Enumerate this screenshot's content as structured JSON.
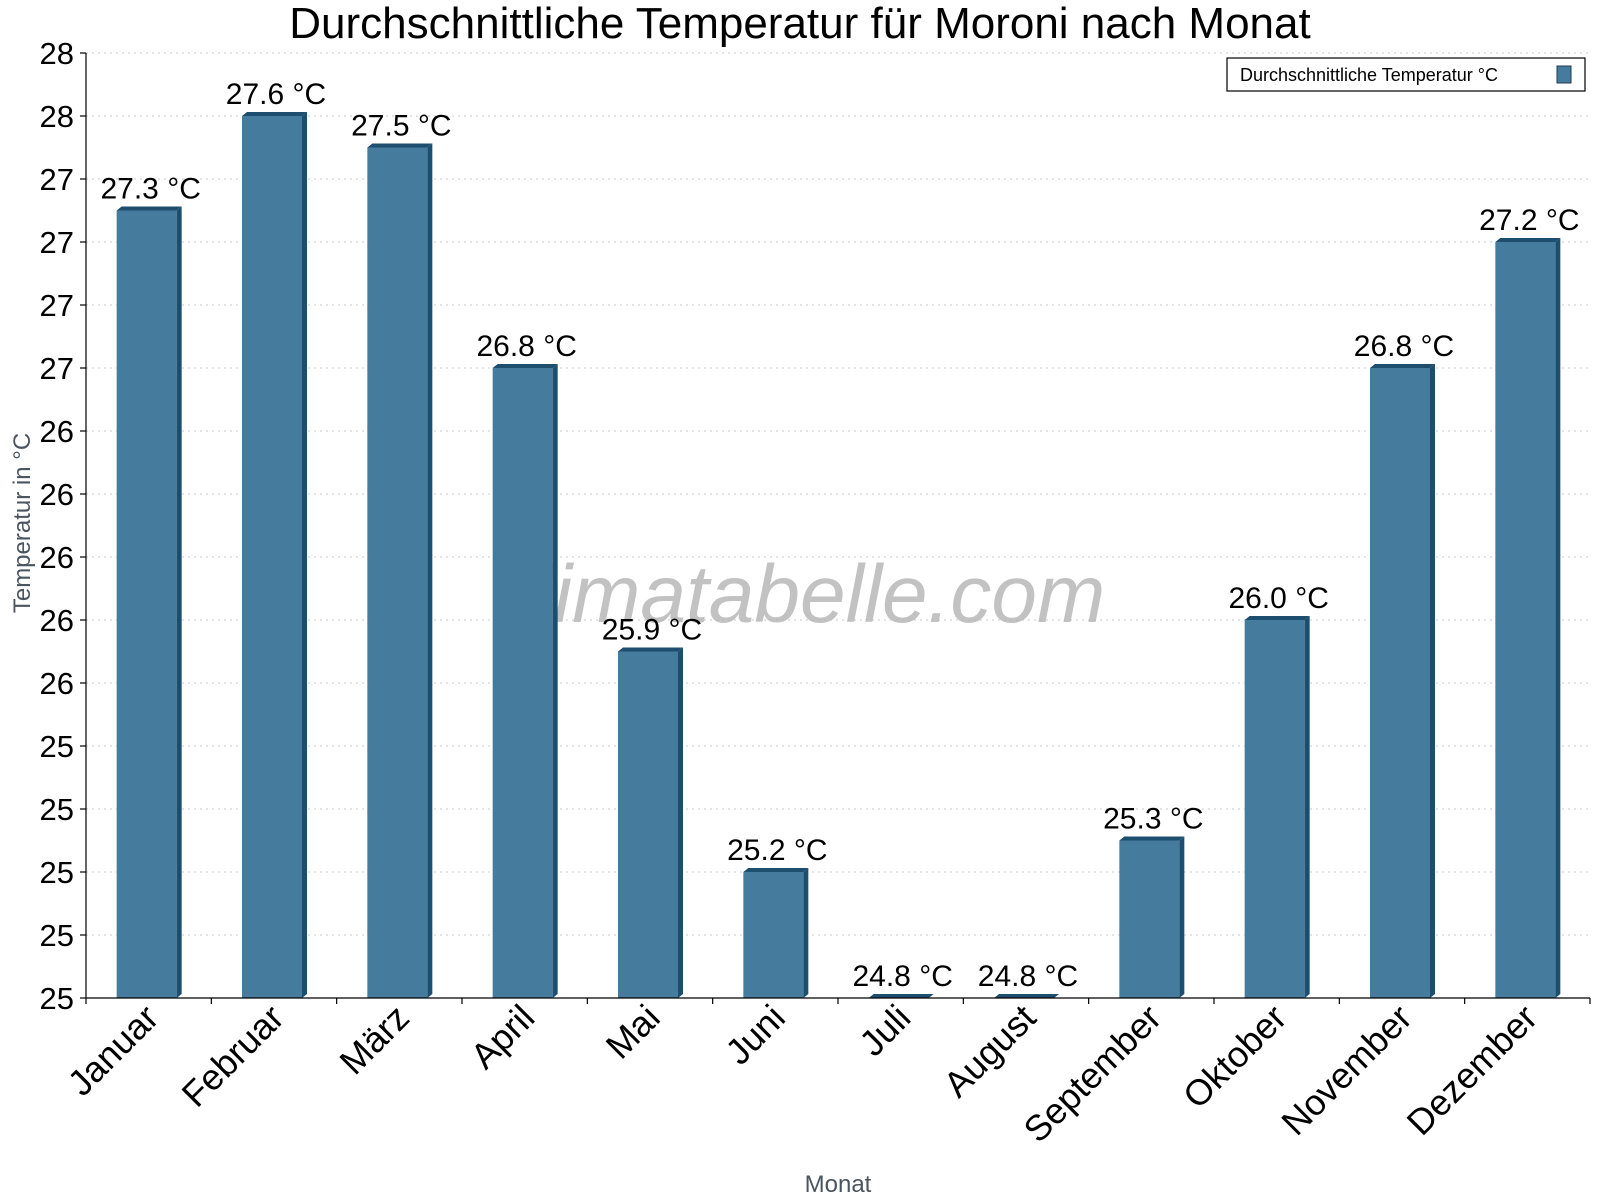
{
  "chart_data": {
    "type": "bar",
    "title": "Durchschnittliche Temperatur für Moroni nach Monat",
    "xlabel": "Monat",
    "ylabel": "Temperatur in °C",
    "categories": [
      "Januar",
      "Februar",
      "März",
      "April",
      "Mai",
      "Juni",
      "Juli",
      "August",
      "September",
      "Oktober",
      "November",
      "Dezember"
    ],
    "series": [
      {
        "name": "Durchschnittliche Temperatur °C",
        "values": [
          27.3,
          27.6,
          27.5,
          26.8,
          25.9,
          25.2,
          24.8,
          24.8,
          25.3,
          26.0,
          26.8,
          27.2
        ],
        "labels": [
          "27.3 °C",
          "27.6 °C",
          "27.5 °C",
          "26.8 °C",
          "25.9 °C",
          "25.2 °C",
          "24.8 °C",
          "24.8 °C",
          "25.3 °C",
          "26.0 °C",
          "26.8 °C",
          "27.2 °C"
        ],
        "color": "#457b9d",
        "edge_color": "#1d4e6e"
      }
    ],
    "ylim": [
      24.8,
      27.8
    ],
    "ytick_values": [
      24.8,
      25.0,
      25.2,
      25.4,
      25.6,
      25.8,
      26.0,
      26.2,
      26.4,
      26.6,
      26.8,
      27.0,
      27.2,
      27.4,
      27.6,
      27.8
    ],
    "ytick_labels": [
      "25",
      "25",
      "25",
      "25",
      "25",
      "26",
      "26",
      "26",
      "26",
      "26",
      "27",
      "27",
      "27",
      "27",
      "28",
      "28"
    ],
    "grid": true,
    "legend_position": "top-right",
    "watermark": "klimatabelle.com"
  }
}
